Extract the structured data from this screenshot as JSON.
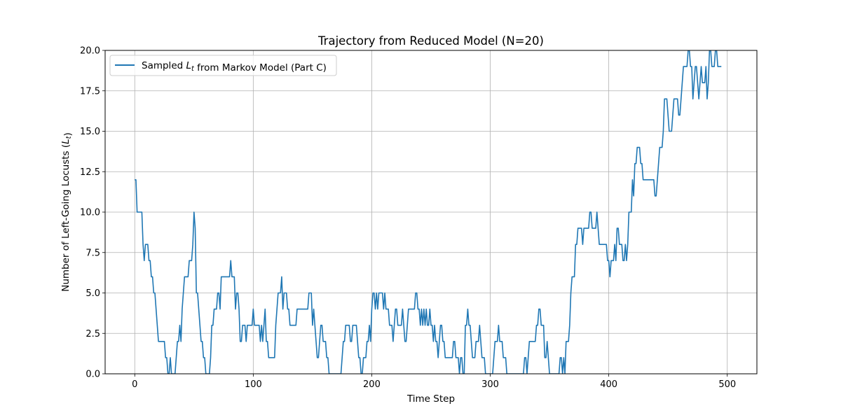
{
  "chart_data": {
    "type": "line",
    "title": "Trajectory from Reduced Model (N=20)",
    "xlabel": "Time Step",
    "ylabel": "Number of Left-Going Locusts (L_t)",
    "xlim": [
      -25,
      525
    ],
    "ylim": [
      0,
      20
    ],
    "x_ticks": [
      0,
      100,
      200,
      300,
      400,
      500
    ],
    "y_ticks": [
      0.0,
      2.5,
      5.0,
      7.5,
      10.0,
      12.5,
      15.0,
      17.5,
      20.0
    ],
    "grid": true,
    "legend": {
      "position": "top-left"
    },
    "series": [
      {
        "name": "Sampled L_t from Markov Model (Part C)",
        "color": "#1f77b4",
        "x_start": 0,
        "x_step": 1,
        "values": [
          12,
          12,
          10,
          10,
          10,
          10,
          10,
          8,
          7,
          8,
          8,
          8,
          7,
          7,
          6,
          6,
          5,
          5,
          4,
          3,
          2,
          2,
          2,
          2,
          2,
          2,
          1,
          1,
          0,
          0,
          1,
          0,
          0,
          0,
          0,
          1,
          2,
          2,
          3,
          2,
          4,
          5,
          6,
          6,
          6,
          6,
          7,
          7,
          7,
          8,
          10,
          9,
          5,
          5,
          4,
          3,
          2,
          2,
          1,
          1,
          0,
          0,
          0,
          0,
          1,
          3,
          3,
          4,
          4,
          4,
          5,
          5,
          4,
          6,
          6,
          6,
          6,
          6,
          6,
          6,
          6,
          7,
          6,
          6,
          6,
          4,
          5,
          5,
          4,
          2,
          2,
          3,
          3,
          3,
          2,
          3,
          3,
          3,
          3,
          3,
          4,
          3,
          3,
          3,
          3,
          3,
          2,
          3,
          2,
          3,
          4,
          2,
          2,
          1,
          1,
          1,
          1,
          1,
          1,
          3,
          4,
          5,
          5,
          5,
          6,
          4,
          5,
          5,
          5,
          4,
          4,
          3,
          3,
          3,
          3,
          3,
          3,
          4,
          4,
          4,
          4,
          4,
          4,
          4,
          4,
          4,
          4,
          5,
          5,
          5,
          3,
          4,
          3,
          2,
          1,
          1,
          2,
          3,
          3,
          2,
          2,
          2,
          1,
          1,
          0,
          0,
          0,
          0,
          0,
          0,
          0,
          0,
          0,
          0,
          0,
          1,
          2,
          2,
          3,
          3,
          3,
          3,
          2,
          2,
          3,
          3,
          3,
          3,
          2,
          1,
          1,
          0,
          0,
          1,
          1,
          1,
          2,
          2,
          3,
          2,
          4,
          5,
          5,
          4,
          5,
          4,
          5,
          5,
          5,
          5,
          4,
          5,
          4,
          4,
          4,
          3,
          3,
          3,
          2,
          3,
          4,
          4,
          3,
          3,
          3,
          3,
          4,
          3,
          2,
          2,
          3,
          4,
          4,
          4,
          4,
          4,
          4,
          5,
          5,
          4,
          4,
          3,
          4,
          3,
          4,
          3,
          4,
          3,
          3,
          4,
          3,
          3,
          2,
          3,
          2,
          2,
          1,
          2,
          3,
          3,
          2,
          2,
          1,
          1,
          1,
          1,
          1,
          1,
          1,
          2,
          2,
          1,
          1,
          1,
          0,
          1,
          1,
          0,
          0,
          3,
          3,
          4,
          3,
          3,
          2,
          1,
          1,
          1,
          2,
          2,
          2,
          3,
          2,
          1,
          1,
          1,
          0,
          0,
          0,
          0,
          0,
          0,
          0,
          1,
          2,
          2,
          2,
          3,
          2,
          2,
          2,
          1,
          1,
          1,
          0,
          0,
          0,
          0,
          0,
          0,
          0,
          0,
          0,
          0,
          0,
          0,
          0,
          0,
          0,
          1,
          1,
          0,
          1,
          2,
          2,
          2,
          2,
          2,
          2,
          3,
          3,
          4,
          4,
          3,
          3,
          3,
          1,
          1,
          2,
          1,
          0,
          0,
          0,
          0,
          0,
          0,
          0,
          0,
          0,
          1,
          1,
          0,
          1,
          0,
          2,
          2,
          2,
          3,
          5,
          6,
          6,
          6,
          8,
          8,
          9,
          9,
          9,
          9,
          8,
          9,
          9,
          9,
          9,
          9,
          10,
          10,
          9,
          9,
          9,
          9,
          10,
          9,
          8,
          8,
          8,
          8,
          8,
          8,
          8,
          7,
          7,
          6,
          7,
          7,
          7,
          8,
          7,
          9,
          9,
          8,
          8,
          8,
          7,
          7,
          8,
          7,
          8,
          10,
          10,
          10,
          12,
          11,
          13,
          13,
          14,
          14,
          14,
          13,
          13,
          12,
          12,
          12,
          12,
          12,
          12,
          12,
          12,
          12,
          12,
          11,
          11,
          12,
          13,
          14,
          14,
          14,
          15,
          17,
          17,
          17,
          16,
          15,
          15,
          15,
          16,
          17,
          17,
          17,
          17,
          16,
          16,
          17,
          18,
          19,
          19,
          19,
          19,
          20,
          20,
          19,
          19,
          17,
          18,
          19,
          19,
          18,
          17,
          18,
          19,
          18,
          18,
          18,
          19,
          17,
          18,
          20,
          20,
          19,
          19,
          19,
          20,
          20,
          19,
          19,
          19,
          19
        ]
      }
    ]
  }
}
